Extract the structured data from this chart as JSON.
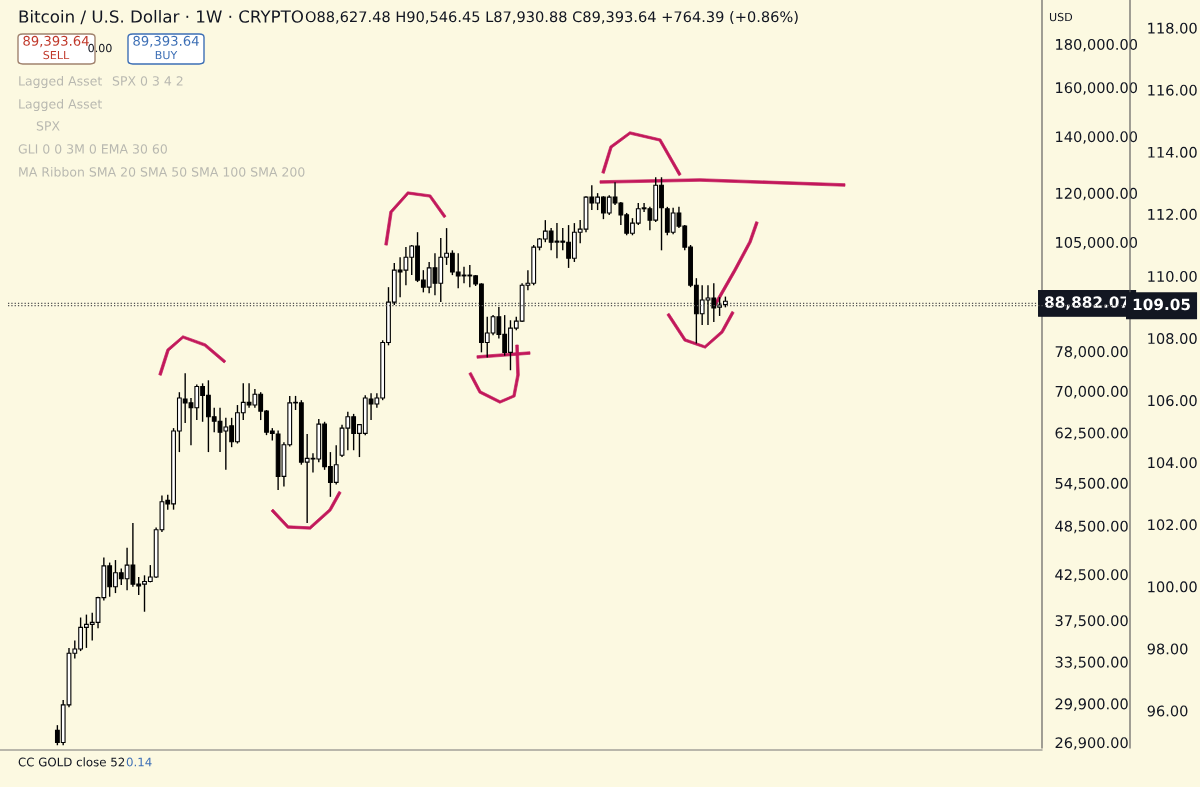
{
  "chart_data": {
    "type": "candlestick",
    "log": true,
    "categories": [
      null,
      null,
      null,
      null,
      null,
      null,
      null,
      null,
      null,
      null,
      null,
      null,
      null,
      null,
      null,
      null,
      null,
      null,
      null,
      null,
      null,
      null,
      null,
      null,
      null,
      null,
      null,
      null,
      null,
      null,
      null,
      null,
      null,
      null,
      null,
      null,
      null,
      null,
      null,
      null,
      null,
      null,
      null,
      null,
      null,
      null,
      null,
      null,
      null,
      null,
      null,
      null,
      null,
      null,
      null,
      null,
      null,
      null,
      null,
      null,
      null,
      null,
      null,
      null,
      null,
      null,
      null,
      null,
      null,
      null,
      null,
      null,
      null,
      null,
      null,
      null,
      null,
      null,
      null,
      null,
      null,
      null,
      null,
      null,
      null,
      null,
      null,
      null,
      null,
      null,
      null,
      null,
      null,
      null,
      null,
      null,
      null,
      null,
      null,
      null,
      null,
      null,
      null,
      null,
      null,
      null,
      null,
      null,
      null,
      null,
      null,
      null,
      null,
      null,
      null,
      null,
      null,
      null,
      null,
      null,
      null,
      null,
      null,
      null,
      null,
      null,
      null,
      null,
      null,
      null,
      null,
      null,
      null,
      null,
      null,
      null,
      null,
      null,
      null,
      null,
      null,
      null,
      null,
      null,
      null,
      null,
      null,
      null,
      null,
      null,
      null,
      null,
      null,
      null,
      null,
      null,
      null,
      null,
      null,
      null,
      null,
      null,
      null,
      null,
      null,
      null,
      null,
      null,
      null,
      null,
      null,
      null,
      null,
      null,
      null,
      null,
      null,
      null
    ],
    "ohlc": [
      null,
      null,
      null,
      null,
      null,
      null,
      null,
      null,
      [
        27800,
        28200,
        26700,
        26900
      ],
      [
        26900,
        30200,
        26700,
        29800
      ],
      [
        29800,
        34800,
        29600,
        34300
      ],
      [
        34300,
        35500,
        33800,
        34700
      ],
      [
        34700,
        37800,
        34500,
        36800
      ],
      [
        36800,
        38100,
        34800,
        37100
      ],
      [
        37100,
        38300,
        35500,
        37300
      ],
      [
        37300,
        40000,
        36700,
        39900
      ],
      [
        39900,
        44500,
        39600,
        43500
      ],
      [
        43500,
        43900,
        40000,
        41100
      ],
      [
        41100,
        44200,
        40400,
        42700
      ],
      [
        42700,
        43200,
        41300,
        42000
      ],
      [
        42000,
        45700,
        40700,
        43600
      ],
      [
        43600,
        48900,
        41100,
        41400
      ],
      [
        41400,
        42200,
        40200,
        41200
      ],
      [
        41400,
        42400,
        38400,
        41700
      ],
      [
        41700,
        43600,
        41600,
        42200
      ],
      [
        42200,
        48300,
        42100,
        48000
      ],
      [
        48000,
        52700,
        47700,
        51800
      ],
      [
        52000,
        52800,
        50700,
        51500
      ],
      [
        51500,
        63300,
        50700,
        62800
      ],
      [
        62800,
        69800,
        59300,
        68700
      ],
      [
        68500,
        73500,
        64200,
        67800
      ],
      [
        67800,
        68700,
        60400,
        66900
      ],
      [
        66900,
        71300,
        64700,
        70900
      ],
      [
        70900,
        71500,
        64400,
        69200
      ],
      [
        69200,
        72100,
        59300,
        65300
      ],
      [
        65300,
        66900,
        62600,
        64500
      ],
      [
        64500,
        66900,
        59300,
        62600
      ],
      [
        62800,
        65100,
        56500,
        63500
      ],
      [
        63700,
        65100,
        60100,
        61000
      ],
      [
        61000,
        67400,
        60700,
        66000
      ],
      [
        66000,
        71500,
        64700,
        67900
      ],
      [
        67900,
        71500,
        66900,
        67400
      ],
      [
        67400,
        70400,
        66900,
        69400
      ],
      [
        69400,
        69800,
        64700,
        66300
      ],
      [
        66300,
        66500,
        62100,
        62600
      ],
      [
        62800,
        63300,
        61200,
        62400
      ],
      [
        62300,
        62900,
        53500,
        55500
      ],
      [
        55500,
        60900,
        54000,
        60500
      ],
      [
        60500,
        69100,
        60200,
        67800
      ],
      [
        67800,
        69100,
        66500,
        67900
      ],
      [
        67800,
        68300,
        57300,
        57700
      ],
      [
        57700,
        62300,
        48900,
        58300
      ],
      [
        58300,
        59100,
        56100,
        58200
      ],
      [
        58200,
        64900,
        57700,
        64000
      ],
      [
        64000,
        64400,
        56500,
        57000
      ],
      [
        57000,
        59300,
        52500,
        54600
      ],
      [
        54600,
        60400,
        54300,
        57300
      ],
      [
        58800,
        63900,
        58500,
        63300
      ],
      [
        63300,
        66200,
        59600,
        65300
      ],
      [
        65300,
        65800,
        59600,
        62400
      ],
      [
        62400,
        63900,
        58500,
        63900
      ],
      [
        62400,
        69200,
        62100,
        68700
      ],
      [
        68500,
        69600,
        64700,
        67600
      ],
      [
        67600,
        69600,
        66900,
        68700
      ],
      [
        68700,
        80400,
        68300,
        79900
      ],
      [
        79900,
        92900,
        79300,
        89200
      ],
      [
        89200,
        99200,
        88500,
        97300
      ],
      [
        97300,
        100800,
        90400,
        96800
      ],
      [
        97300,
        103600,
        93400,
        100800
      ],
      [
        100800,
        104200,
        96000,
        103900
      ],
      [
        103900,
        107900,
        94200,
        94700
      ],
      [
        94700,
        97300,
        91600,
        92900
      ],
      [
        92900,
        99500,
        91400,
        97900
      ],
      [
        97900,
        101900,
        90900,
        93900
      ],
      [
        93900,
        106200,
        89200,
        100800
      ],
      [
        100800,
        109100,
        98700,
        101900
      ],
      [
        101900,
        102700,
        96000,
        96800
      ],
      [
        96800,
        101900,
        92600,
        95800
      ],
      [
        95800,
        98200,
        93900,
        96000
      ],
      [
        96000,
        98700,
        92900,
        95800
      ],
      [
        95800,
        96000,
        93200,
        93700
      ],
      [
        93700,
        93900,
        77800,
        79900
      ],
      [
        79900,
        85700,
        76700,
        82000
      ],
      [
        82000,
        86100,
        81500,
        85700
      ],
      [
        85700,
        88000,
        80800,
        81700
      ],
      [
        81700,
        86100,
        77100,
        77800
      ],
      [
        77800,
        84900,
        74100,
        83100
      ],
      [
        83100,
        85700,
        82600,
        84700
      ],
      [
        84700,
        93900,
        84500,
        93400
      ],
      [
        93400,
        97300,
        92100,
        93900
      ],
      [
        93900,
        104200,
        93400,
        103600
      ],
      [
        103600,
        106200,
        102700,
        105900
      ],
      [
        105900,
        111500,
        105000,
        108200
      ],
      [
        108200,
        109100,
        102700,
        105000
      ],
      [
        105000,
        110600,
        100500,
        105300
      ],
      [
        105300,
        109100,
        102700,
        105000
      ],
      [
        105000,
        110000,
        97900,
        100500
      ],
      [
        100500,
        110600,
        99500,
        107900
      ],
      [
        107900,
        111500,
        104700,
        108800
      ],
      [
        108800,
        119000,
        107900,
        118700
      ],
      [
        118700,
        122600,
        114600,
        116800
      ],
      [
        116800,
        120000,
        114600,
        118700
      ],
      [
        118700,
        119000,
        111800,
        113700
      ],
      [
        113700,
        119300,
        113100,
        118700
      ],
      [
        118700,
        123600,
        116200,
        116800
      ],
      [
        116800,
        117100,
        110000,
        113100
      ],
      [
        113100,
        113700,
        107000,
        107600
      ],
      [
        107600,
        112100,
        107000,
        110600
      ],
      [
        110600,
        116800,
        110000,
        115000
      ],
      [
        115000,
        116800,
        114000,
        115300
      ],
      [
        115000,
        115600,
        108500,
        111500
      ],
      [
        111500,
        125300,
        110900,
        122600
      ],
      [
        122600,
        125300,
        102700,
        115300
      ],
      [
        115000,
        115600,
        107000,
        107900
      ],
      [
        107900,
        115300,
        107300,
        113700
      ],
      [
        113700,
        115600,
        109100,
        109700
      ],
      [
        109700,
        110000,
        102700,
        103600
      ],
      [
        103600,
        104200,
        92900,
        93400
      ],
      [
        93400,
        95200,
        79700,
        86400
      ],
      [
        86400,
        93400,
        83800,
        89700
      ],
      [
        89700,
        93400,
        83800,
        90200
      ],
      [
        90200,
        93900,
        84500,
        87800
      ],
      [
        88000,
        90400,
        85900,
        88500
      ],
      [
        88627.48,
        90546.45,
        87930.88,
        89393.64
      ],
      null,
      null,
      null,
      null,
      null,
      null,
      null,
      null,
      null,
      null,
      null,
      null,
      null,
      null,
      null,
      null,
      null,
      null,
      null,
      null,
      null,
      null,
      null,
      null,
      null,
      null,
      null,
      null,
      null,
      null,
      null,
      null,
      null,
      null,
      null,
      null,
      null,
      null,
      null,
      null,
      null,
      null,
      null,
      null,
      null,
      null,
      null,
      null,
      null,
      null,
      null,
      null,
      null,
      null
    ],
    "ylim": [
      26500,
      203000
    ],
    "yticks": [
      {
        "value": 180000,
        "label": "180,000.00"
      },
      {
        "value": 160000,
        "label": "160,000.00"
      },
      {
        "value": 140000,
        "label": "140,000.00"
      },
      {
        "value": 120000,
        "label": "120,000.00"
      },
      {
        "value": 105000,
        "label": "105,000.00"
      },
      {
        "value": 78000,
        "label": "78,000.00"
      },
      {
        "value": 70000,
        "label": "70,000.00"
      },
      {
        "value": 62500,
        "label": "62,500.00"
      },
      {
        "value": 54500,
        "label": "54,500.00"
      },
      {
        "value": 48500,
        "label": "48,500.00"
      },
      {
        "value": 42500,
        "label": "42,500.00"
      },
      {
        "value": 37500,
        "label": "37,500.00"
      },
      {
        "value": 33500,
        "label": "33,500.00"
      },
      {
        "value": 29900,
        "label": "29,900.00"
      },
      {
        "value": 26900,
        "label": "26,900.00"
      }
    ],
    "y2lim": [
      94.8,
      118.9
    ],
    "y2ticks": [
      {
        "value": 96,
        "label": "96.00"
      },
      {
        "value": 98,
        "label": "98.00"
      },
      {
        "value": 100,
        "label": "100.00"
      },
      {
        "value": 102,
        "label": "102.00"
      },
      {
        "value": 104,
        "label": "104.00"
      },
      {
        "value": 106,
        "label": "106.00"
      },
      {
        "value": 108,
        "label": "108.00"
      },
      {
        "value": 110,
        "label": "110.00"
      },
      {
        "value": 112,
        "label": "112.00"
      },
      {
        "value": 114,
        "label": "114.00"
      },
      {
        "value": 116,
        "label": "116.00"
      },
      {
        "value": 118,
        "label": "118.00"
      }
    ],
    "ref_lines": [
      {
        "axis": "y",
        "value": 88882.07,
        "label": "88,882.07",
        "line_style": "dotted",
        "color": "#555555"
      },
      {
        "axis": "y2",
        "value": 109.05,
        "label": "109.05",
        "line_style": "dotted",
        "color": "#555555"
      }
    ],
    "grid": false,
    "annotations": [
      "Bitcoin / U.S. Dollar · 1W · CRYPTO",
      "O88,627.48 H90,546.45 L87,930.88 C89,393.64 +764.39 (+0.86%)",
      "89,393.64",
      "SELL",
      "0.00",
      "89,393.64",
      "BUY",
      "Lagged Asset",
      "SPX 0 3 4 2",
      "Lagged Asset",
      "SPX",
      "GLI 0 0 3M 0 EMA 30 60",
      "MA Ribbon SMA 20 SMA 50 SMA 100 SMA 200",
      "CC GOLD close 52",
      "0.14",
      "USD"
    ]
  }
}
